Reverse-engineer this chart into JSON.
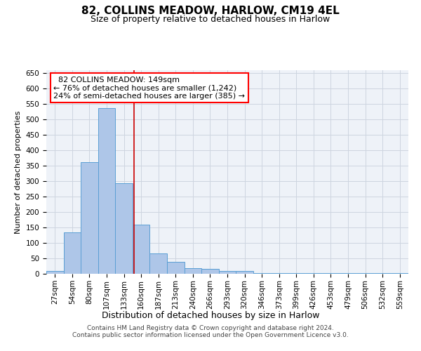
{
  "title": "82, COLLINS MEADOW, HARLOW, CM19 4EL",
  "subtitle": "Size of property relative to detached houses in Harlow",
  "xlabel": "Distribution of detached houses by size in Harlow",
  "ylabel": "Number of detached properties",
  "bar_labels": [
    "27sqm",
    "54sqm",
    "80sqm",
    "107sqm",
    "133sqm",
    "160sqm",
    "187sqm",
    "213sqm",
    "240sqm",
    "266sqm",
    "293sqm",
    "320sqm",
    "346sqm",
    "373sqm",
    "399sqm",
    "426sqm",
    "453sqm",
    "479sqm",
    "506sqm",
    "532sqm",
    "559sqm"
  ],
  "bar_values": [
    10,
    135,
    362,
    538,
    293,
    160,
    67,
    38,
    18,
    15,
    10,
    8,
    3,
    3,
    3,
    3,
    3,
    3,
    3,
    3,
    3
  ],
  "bar_color": "#aec6e8",
  "bar_edge_color": "#5a9fd4",
  "bar_width": 1.0,
  "vline_color": "#cc0000",
  "annotation_line1": "  82 COLLINS MEADOW: 149sqm",
  "annotation_line2": "← 76% of detached houses are smaller (1,242)",
  "annotation_line3": "24% of semi-detached houses are larger (385) →",
  "ylim": [
    0,
    660
  ],
  "yticks": [
    0,
    50,
    100,
    150,
    200,
    250,
    300,
    350,
    400,
    450,
    500,
    550,
    600,
    650
  ],
  "grid_color": "#cdd5e0",
  "background_color": "#eef2f8",
  "footer_line1": "Contains HM Land Registry data © Crown copyright and database right 2024.",
  "footer_line2": "Contains public sector information licensed under the Open Government Licence v3.0.",
  "title_fontsize": 11,
  "subtitle_fontsize": 9,
  "xlabel_fontsize": 9,
  "ylabel_fontsize": 8,
  "tick_fontsize": 7.5,
  "annotation_fontsize": 8,
  "footer_fontsize": 6.5
}
